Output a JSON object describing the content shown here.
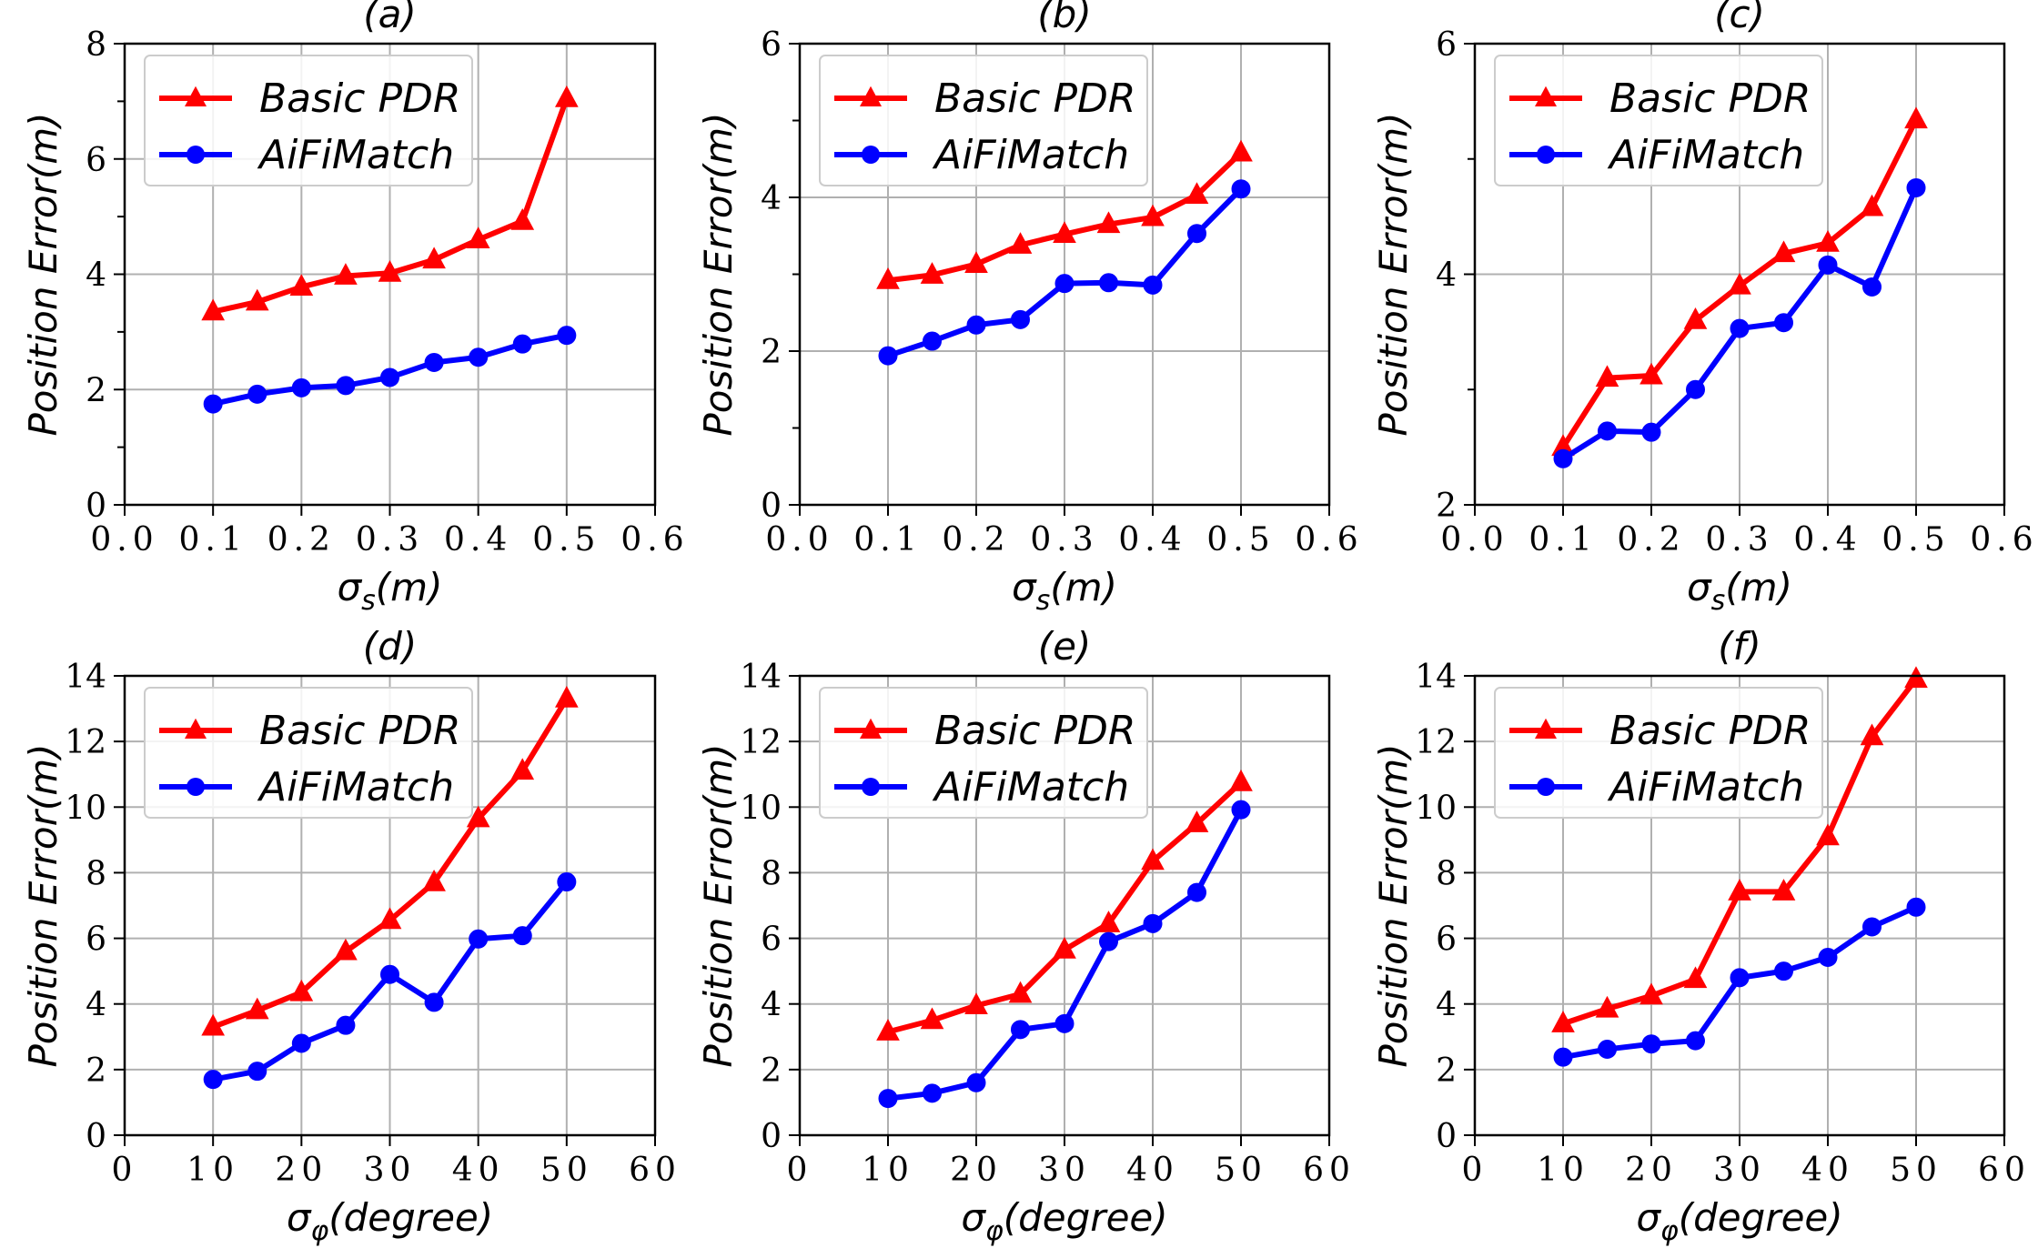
{
  "chart_data": [
    {
      "type": "line",
      "title": "(a)",
      "xlabel": "σs(m)",
      "ylabel": "Position Error(m)",
      "xlim": [
        0.0,
        0.6
      ],
      "ylim": [
        0,
        8
      ],
      "xticks": [
        "0.0",
        "0.1",
        "0.2",
        "0.3",
        "0.4",
        "0.5",
        "0.6"
      ],
      "yticks": [
        "0",
        "2",
        "4",
        "6",
        "8"
      ],
      "grid": true,
      "legend": "top-left",
      "x": [
        0.1,
        0.15,
        0.2,
        0.25,
        0.3,
        0.35,
        0.4,
        0.45,
        0.5
      ],
      "series": [
        {
          "name": "Basic PDR",
          "color": "#ff0000",
          "marker": "triangle",
          "values": [
            3.35,
            3.52,
            3.78,
            3.97,
            4.02,
            4.25,
            4.6,
            4.92,
            7.05
          ]
        },
        {
          "name": "AiFiMatch",
          "color": "#0000ff",
          "marker": "circle",
          "values": [
            1.75,
            1.92,
            2.03,
            2.07,
            2.21,
            2.47,
            2.56,
            2.79,
            2.94
          ]
        }
      ]
    },
    {
      "type": "line",
      "title": "(b)",
      "xlabel": "σs(m)",
      "ylabel": "Position Error(m)",
      "xlim": [
        0.0,
        0.6
      ],
      "ylim": [
        0,
        6
      ],
      "xticks": [
        "0.0",
        "0.1",
        "0.2",
        "0.3",
        "0.4",
        "0.5",
        "0.6"
      ],
      "yticks": [
        "0",
        "2",
        "4",
        "6"
      ],
      "grid": true,
      "legend": "top-left",
      "x": [
        0.1,
        0.15,
        0.2,
        0.25,
        0.3,
        0.35,
        0.4,
        0.45,
        0.5
      ],
      "series": [
        {
          "name": "Basic PDR",
          "color": "#ff0000",
          "marker": "triangle",
          "values": [
            2.92,
            2.99,
            3.13,
            3.38,
            3.52,
            3.65,
            3.74,
            4.03,
            4.58
          ]
        },
        {
          "name": "AiFiMatch",
          "color": "#0000ff",
          "marker": "circle",
          "values": [
            1.94,
            2.13,
            2.34,
            2.41,
            2.88,
            2.89,
            2.86,
            3.53,
            4.11
          ]
        }
      ]
    },
    {
      "type": "line",
      "title": "(c)",
      "xlabel": "σs(m)",
      "ylabel": "Position Error(m)",
      "xlim": [
        0.0,
        0.6
      ],
      "ylim": [
        2,
        6
      ],
      "xticks": [
        "0.0",
        "0.1",
        "0.2",
        "0.3",
        "0.4",
        "0.5",
        "0.6"
      ],
      "yticks": [
        "2",
        "4",
        "6"
      ],
      "grid": true,
      "legend": "top-left",
      "x": [
        0.1,
        0.15,
        0.2,
        0.25,
        0.3,
        0.35,
        0.4,
        0.45,
        0.5
      ],
      "series": [
        {
          "name": "Basic PDR",
          "color": "#ff0000",
          "marker": "triangle",
          "values": [
            2.5,
            3.1,
            3.12,
            3.6,
            3.9,
            4.18,
            4.27,
            4.58,
            5.34
          ]
        },
        {
          "name": "AiFiMatch",
          "color": "#0000ff",
          "marker": "circle",
          "values": [
            2.4,
            2.64,
            2.63,
            3.0,
            3.53,
            3.58,
            4.08,
            3.89,
            4.75
          ]
        }
      ]
    },
    {
      "type": "line",
      "title": "(d)",
      "xlabel": "σφ(degree)",
      "ylabel": "Position Error(m)",
      "xlim": [
        0,
        60
      ],
      "ylim": [
        0,
        14
      ],
      "xticks": [
        "0",
        "10",
        "20",
        "30",
        "40",
        "50",
        "60"
      ],
      "yticks": [
        "0",
        "2",
        "4",
        "6",
        "8",
        "10",
        "12",
        "14"
      ],
      "grid": true,
      "legend": "top-left",
      "x": [
        10,
        15,
        20,
        25,
        30,
        35,
        40,
        45,
        50
      ],
      "series": [
        {
          "name": "Basic PDR",
          "color": "#ff0000",
          "marker": "triangle",
          "values": [
            3.3,
            3.8,
            4.35,
            5.6,
            6.55,
            7.7,
            9.65,
            11.1,
            13.3
          ]
        },
        {
          "name": "AiFiMatch",
          "color": "#0000ff",
          "marker": "circle",
          "values": [
            1.7,
            1.95,
            2.8,
            3.35,
            4.9,
            4.05,
            5.98,
            6.08,
            7.72
          ]
        }
      ]
    },
    {
      "type": "line",
      "title": "(e)",
      "xlabel": "σφ(degree)",
      "ylabel": "Position Error(m)",
      "xlim": [
        0,
        60
      ],
      "ylim": [
        0,
        14
      ],
      "xticks": [
        "0",
        "10",
        "20",
        "30",
        "40",
        "50",
        "60"
      ],
      "yticks": [
        "0",
        "2",
        "4",
        "6",
        "8",
        "10",
        "12",
        "14"
      ],
      "grid": true,
      "legend": "top-left",
      "x": [
        10,
        15,
        20,
        25,
        30,
        35,
        40,
        45,
        50
      ],
      "series": [
        {
          "name": "Basic PDR",
          "color": "#ff0000",
          "marker": "triangle",
          "values": [
            3.15,
            3.5,
            3.95,
            4.3,
            5.65,
            6.45,
            8.35,
            9.5,
            10.75
          ]
        },
        {
          "name": "AiFiMatch",
          "color": "#0000ff",
          "marker": "circle",
          "values": [
            1.12,
            1.28,
            1.6,
            3.22,
            3.4,
            5.9,
            6.45,
            7.4,
            9.92
          ]
        }
      ]
    },
    {
      "type": "line",
      "title": "(f)",
      "xlabel": "σφ(degree)",
      "ylabel": "Position Error(m)",
      "xlim": [
        0,
        60
      ],
      "ylim": [
        0,
        14
      ],
      "xticks": [
        "0",
        "10",
        "20",
        "30",
        "40",
        "50",
        "60"
      ],
      "yticks": [
        "0",
        "2",
        "4",
        "6",
        "8",
        "10",
        "12",
        "14"
      ],
      "grid": true,
      "legend": "top-left",
      "x": [
        10,
        15,
        20,
        25,
        30,
        35,
        40,
        45,
        50
      ],
      "series": [
        {
          "name": "Basic PDR",
          "color": "#ff0000",
          "marker": "triangle",
          "values": [
            3.4,
            3.85,
            4.25,
            4.75,
            7.42,
            7.42,
            9.1,
            12.15,
            13.9
          ]
        },
        {
          "name": "AiFiMatch",
          "color": "#0000ff",
          "marker": "circle",
          "values": [
            2.38,
            2.62,
            2.78,
            2.88,
            4.8,
            5.0,
            5.42,
            6.35,
            6.95
          ]
        }
      ]
    }
  ]
}
